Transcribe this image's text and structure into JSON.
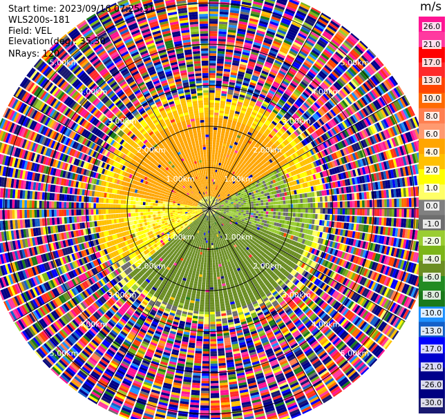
{
  "info": {
    "start_time": "Start time: 2023/09/16 07:25:31",
    "site": "WLS200s-181",
    "field": "Field: VEL",
    "elevation": "Elevation(deg): 35.30",
    "nrays": "NRays: 120"
  },
  "colorbar": {
    "unit": "m/s",
    "ticks": [
      "26.0",
      "21.0",
      "17.0",
      "13.0",
      "10.0",
      "8.0",
      "6.0",
      "4.0",
      "2.0",
      "1.0",
      "0.0",
      "-1.0",
      "-2.0",
      "-4.0",
      "-6.0",
      "-8.0",
      "-10.0",
      "-13.0",
      "-17.0",
      "-21.0",
      "-26.0",
      "-30.0"
    ],
    "colors": [
      "#ff1493",
      "#ff3aa0",
      "#ff0000",
      "#ff2a2a",
      "#ff4500",
      "#ff6a00",
      "#ff7f50",
      "#ff9a70",
      "#ffa500",
      "#ffc000",
      "#ffff00",
      "#ffff66",
      "#808080",
      "#6e6e6e",
      "#9acd32",
      "#7cb518",
      "#6b8e23",
      "#228b22",
      "#1a7a1a",
      "#1e90ff",
      "#1460c8",
      "#0000ff",
      "#0000cd",
      "#00008b",
      "#000080",
      "#191970"
    ]
  },
  "range_labels": [
    "1.00km",
    "2.00km",
    "3.00km",
    "4.00km",
    "5.00km"
  ],
  "chart_data": {
    "type": "heatmap",
    "description_type": "polar-ppi",
    "field": "VEL",
    "units": "m/s",
    "nrays": 120,
    "range_rings_km": [
      1,
      2,
      3,
      4,
      5
    ],
    "max_range_km": 5.5,
    "color_scale": [
      -30,
      -26,
      -21,
      -17,
      -13,
      -10,
      -8,
      -6,
      -4,
      -2,
      -1,
      0,
      1,
      2,
      4,
      6,
      8,
      10,
      13,
      17,
      21,
      26
    ],
    "vmin": -30,
    "vmax": 26,
    "sectors": [
      {
        "name": "north-orange",
        "azimuth_range": [
          280,
          60
        ],
        "range_km": [
          0.3,
          2.2
        ],
        "value": 5
      },
      {
        "name": "yellow-band",
        "azimuth_range": [
          240,
          80
        ],
        "range_km": [
          2.0,
          2.8
        ],
        "value": 2.5
      },
      {
        "name": "east-gray-green",
        "azimuth_range": [
          60,
          110
        ],
        "range_km": [
          0.2,
          2.6
        ],
        "value": -1.5
      },
      {
        "name": "south-green",
        "azimuth_range": [
          110,
          230
        ],
        "range_km": [
          0.2,
          2.5
        ],
        "value": -5
      },
      {
        "name": "west-yellow-gray",
        "azimuth_range": [
          230,
          280
        ],
        "range_km": [
          0.2,
          2.2
        ],
        "value": 1.5
      }
    ],
    "noise_beyond_km": 2.6
  }
}
